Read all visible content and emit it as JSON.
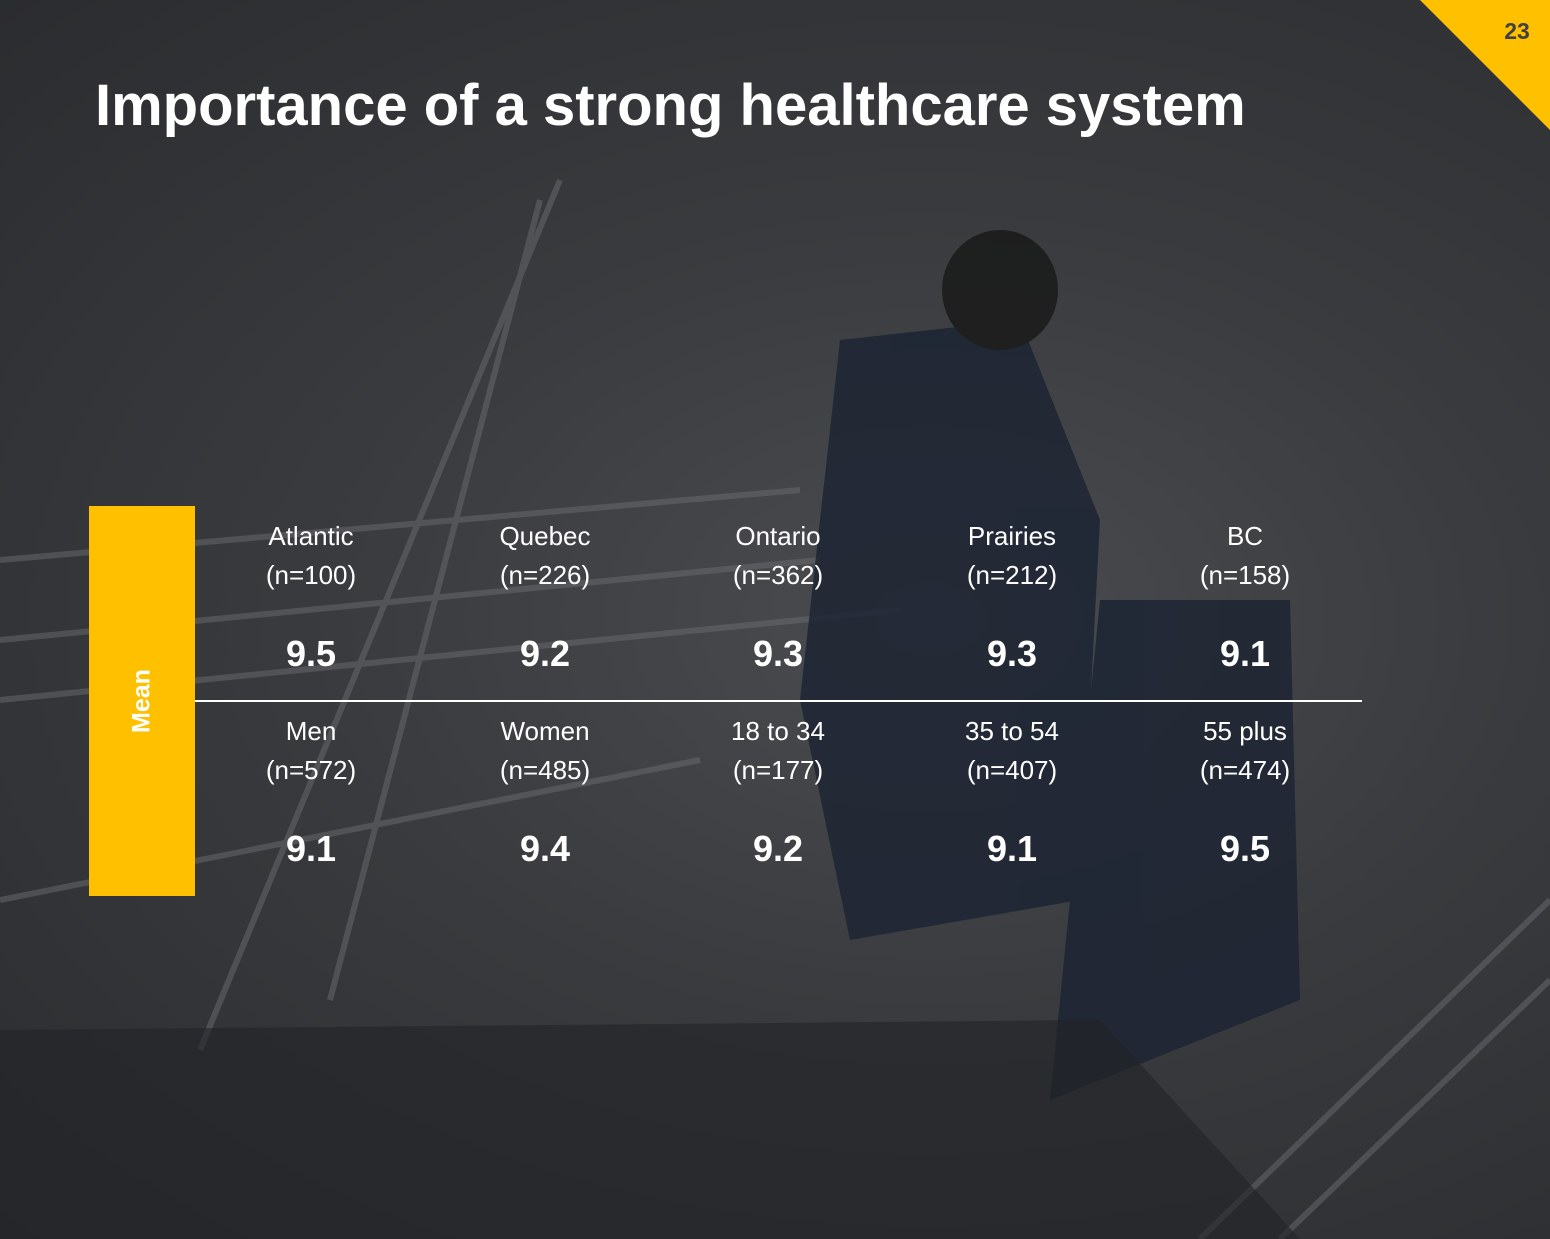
{
  "page_number": 23,
  "title": "Importance of a strong healthcare system",
  "table": {
    "row_label": "Mean",
    "rows": [
      [
        {
          "group": "Atlantic",
          "n": "(n=100)",
          "mean": 9.5
        },
        {
          "group": "Quebec",
          "n": "(n=226)",
          "mean": 9.2
        },
        {
          "group": "Ontario",
          "n": "(n=362)",
          "mean": 9.3
        },
        {
          "group": "Prairies",
          "n": "(n=212)",
          "mean": 9.3
        },
        {
          "group": "BC",
          "n": "(n=158)",
          "mean": 9.1
        }
      ],
      [
        {
          "group": "Men",
          "n": "(n=572)",
          "mean": 9.1
        },
        {
          "group": "Women",
          "n": "(n=485)",
          "mean": 9.4
        },
        {
          "group": "18 to 34",
          "n": "(n=177)",
          "mean": 9.2
        },
        {
          "group": "35 to 54",
          "n": "(n=407)",
          "mean": 9.1
        },
        {
          "group": "55 plus",
          "n": "(n=474)",
          "mean": 9.5
        }
      ]
    ]
  }
}
